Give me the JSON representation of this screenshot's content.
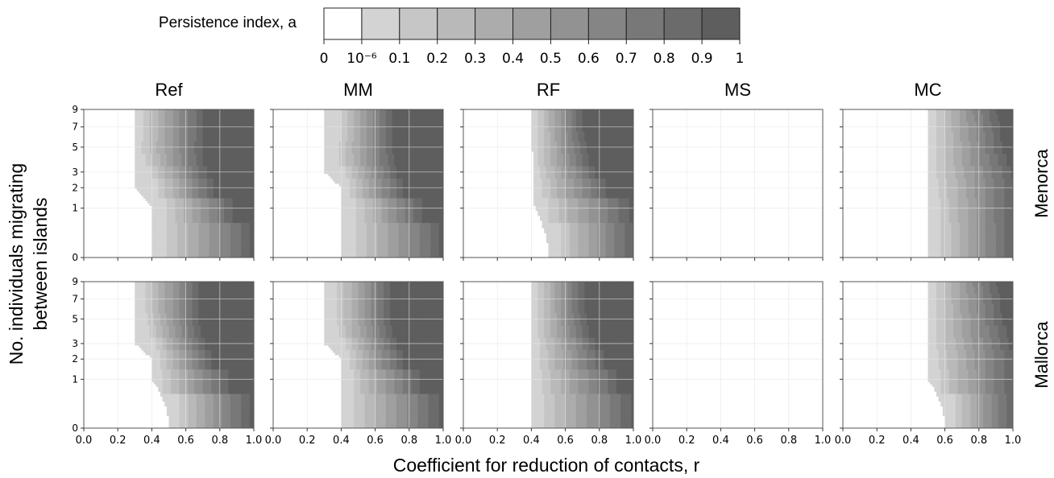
{
  "legend": {
    "title": "Persistence index, a",
    "tick_labels": [
      "0",
      "10⁻⁶",
      "0.1",
      "0.2",
      "0.3",
      "0.4",
      "0.5",
      "0.6",
      "0.7",
      "0.8",
      "0.9",
      "1"
    ],
    "colors": [
      "#ffffff",
      "#d3d3d3",
      "#c6c6c6",
      "#b9b9b9",
      "#acacac",
      "#9f9f9f",
      "#929292",
      "#858585",
      "#787878",
      "#6b6b6b",
      "#5e5e5e"
    ]
  },
  "ylabel_line1": "No. individuals migrating",
  "ylabel_line2": "between islands",
  "xlabel": "Coefficient for reduction of contacts, r",
  "chart_data": {
    "type": "heatmap",
    "xlabel": "Coefficient for reduction of contacts, r",
    "ylabel": "No. individuals migrating between islands",
    "xlim": [
      0,
      1
    ],
    "ylim": [
      0,
      9
    ],
    "x_ticks": [
      0.0,
      0.2,
      0.4,
      0.6,
      0.8,
      1.0
    ],
    "x_tick_labels": [
      "0.0",
      "0.2",
      "0.4",
      "0.6",
      "0.8",
      "1.0"
    ],
    "y_ticks": [
      0,
      1,
      2,
      3,
      5,
      7,
      9
    ],
    "y_tick_labels": [
      "0",
      "1",
      "2",
      "3",
      "5",
      "7",
      "9"
    ],
    "y_scale": "sqrt",
    "columns": [
      "Ref",
      "MM",
      "RF",
      "MS",
      "MC"
    ],
    "rows": [
      "Menorca",
      "Mallorca"
    ],
    "color_levels": [
      0,
      1e-06,
      0.1,
      0.2,
      0.3,
      0.4,
      0.5,
      0.6,
      0.7,
      0.8,
      0.9,
      1
    ],
    "panels": [
      {
        "column": "Ref",
        "row": "Menorca",
        "onset": [
          [
            0,
            0.4
          ],
          [
            1,
            0.4
          ],
          [
            2,
            0.3
          ],
          [
            9,
            0.3
          ]
        ],
        "b01": [
          0.49,
          0.49,
          0.44,
          0.4,
          0.36,
          0.34,
          0.35,
          0.35,
          0.35,
          0.35
        ],
        "b09": [
          0.98,
          0.88,
          0.76,
          0.72,
          0.7,
          0.7,
          0.7,
          0.7,
          0.7,
          0.7
        ]
      },
      {
        "column": "MM",
        "row": "Menorca",
        "onset": [
          [
            0,
            0.4
          ],
          [
            1,
            0.4
          ],
          [
            2,
            0.4
          ],
          [
            3,
            0.3
          ],
          [
            9,
            0.3
          ]
        ],
        "b01": [
          0.49,
          0.49,
          0.45,
          0.42,
          0.39,
          0.39,
          0.4,
          0.4,
          0.4,
          0.4
        ],
        "b09": [
          0.98,
          0.87,
          0.76,
          0.72,
          0.71,
          0.7,
          0.7,
          0.7,
          0.7,
          0.7
        ]
      },
      {
        "column": "RF",
        "row": "Menorca",
        "onset": [
          [
            0,
            0.5
          ],
          [
            1,
            0.42
          ],
          [
            2,
            0.41
          ],
          [
            9,
            0.4
          ]
        ],
        "b01": [
          0.57,
          0.5,
          0.46,
          0.45,
          0.44,
          0.44,
          0.44,
          0.44,
          0.44,
          0.44
        ],
        "b09": [
          1.0,
          0.97,
          0.84,
          0.78,
          0.74,
          0.72,
          0.71,
          0.7,
          0.7,
          0.7
        ]
      },
      {
        "column": "MS",
        "row": "Menorca",
        "onset": [],
        "b01": [],
        "b09": []
      },
      {
        "column": "MC",
        "row": "Menorca",
        "onset": [
          [
            0,
            0.5
          ],
          [
            9,
            0.5
          ]
        ],
        "b01": [
          0.58,
          0.57,
          0.56,
          0.55,
          0.55,
          0.55,
          0.55,
          0.55,
          0.55,
          0.55
        ],
        "b09": [
          1.0,
          1.0,
          1.0,
          0.99,
          0.96,
          0.94,
          0.93,
          0.92,
          0.91,
          0.9
        ]
      },
      {
        "column": "Ref",
        "row": "Mallorca",
        "onset": [
          [
            0,
            0.5
          ],
          [
            1,
            0.4
          ],
          [
            2,
            0.4
          ],
          [
            3,
            0.3
          ],
          [
            9,
            0.3
          ]
        ],
        "b01": [
          0.56,
          0.46,
          0.45,
          0.42,
          0.39,
          0.37,
          0.36,
          0.36,
          0.36,
          0.36
        ],
        "b09": [
          0.97,
          0.85,
          0.75,
          0.71,
          0.69,
          0.68,
          0.68,
          0.68,
          0.68,
          0.68
        ]
      },
      {
        "column": "MM",
        "row": "Mallorca",
        "onset": [
          [
            0,
            0.4
          ],
          [
            1,
            0.4
          ],
          [
            2,
            0.4
          ],
          [
            3,
            0.3
          ],
          [
            9,
            0.3
          ]
        ],
        "b01": [
          0.48,
          0.47,
          0.45,
          0.42,
          0.39,
          0.38,
          0.38,
          0.38,
          0.38,
          0.38
        ],
        "b09": [
          0.98,
          0.86,
          0.76,
          0.72,
          0.7,
          0.69,
          0.69,
          0.69,
          0.69,
          0.69
        ]
      },
      {
        "column": "RF",
        "row": "Mallorca",
        "onset": [
          [
            0,
            0.4
          ],
          [
            9,
            0.4
          ]
        ],
        "b01": [
          0.47,
          0.46,
          0.45,
          0.45,
          0.44,
          0.44,
          0.44,
          0.44,
          0.44,
          0.44
        ],
        "b09": [
          0.99,
          0.9,
          0.82,
          0.78,
          0.74,
          0.72,
          0.71,
          0.71,
          0.71,
          0.71
        ]
      },
      {
        "column": "MS",
        "row": "Mallorca",
        "onset": [],
        "b01": [],
        "b09": []
      },
      {
        "column": "MC",
        "row": "Mallorca",
        "onset": [
          [
            0,
            0.6
          ],
          [
            1,
            0.5
          ],
          [
            9,
            0.5
          ]
        ],
        "b01": [
          0.66,
          0.57,
          0.56,
          0.55,
          0.55,
          0.55,
          0.55,
          0.55,
          0.55,
          0.55
        ],
        "b09": [
          1.0,
          1.0,
          1.0,
          0.98,
          0.96,
          0.94,
          0.93,
          0.92,
          0.91,
          0.9
        ]
      }
    ]
  }
}
